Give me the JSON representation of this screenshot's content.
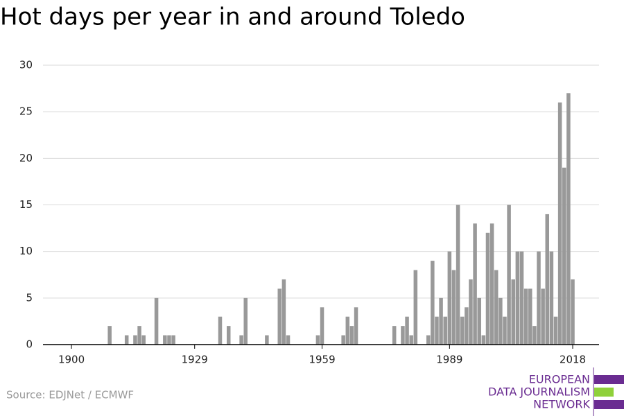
{
  "chart_data": {
    "type": "bar",
    "title": "Hot days per year in and around Toledo",
    "x": [
      1909,
      1913,
      1915,
      1916,
      1917,
      1920,
      1922,
      1923,
      1924,
      1935,
      1937,
      1940,
      1941,
      1946,
      1949,
      1950,
      1951,
      1958,
      1959,
      1964,
      1965,
      1966,
      1967,
      1976,
      1978,
      1979,
      1980,
      1981,
      1984,
      1985,
      1986,
      1987,
      1988,
      1989,
      1990,
      1991,
      1992,
      1993,
      1994,
      1995,
      1996,
      1997,
      1998,
      1999,
      2000,
      2001,
      2002,
      2003,
      2004,
      2005,
      2006,
      2007,
      2008,
      2009,
      2010,
      2011,
      2012,
      2013,
      2014,
      2015,
      2016,
      2017,
      2018
    ],
    "values": [
      2,
      1,
      1,
      2,
      1,
      5,
      1,
      1,
      1,
      3,
      2,
      1,
      5,
      1,
      6,
      7,
      1,
      1,
      4,
      1,
      3,
      2,
      4,
      2,
      2,
      3,
      1,
      8,
      1,
      9,
      3,
      5,
      3,
      10,
      8,
      15,
      3,
      4,
      7,
      13,
      5,
      1,
      12,
      13,
      8,
      5,
      3,
      15,
      7,
      10,
      10,
      6,
      6,
      2,
      10,
      6,
      14,
      10,
      3,
      26,
      19,
      27,
      7
    ],
    "color": "#999999",
    "xlim": [
      1893.3,
      2024.2
    ],
    "xticks": [
      1900,
      1929,
      1959,
      1989,
      2018
    ],
    "ylim": [
      0,
      30
    ],
    "yticks": [
      0,
      5,
      10,
      15,
      20,
      25,
      30
    ],
    "grid": true
  },
  "footer": {
    "source": "Source: EDJNet / ECMWF",
    "logo": [
      "EUROPEAN",
      "DATA JOURNALISM",
      "NETWORK"
    ]
  }
}
